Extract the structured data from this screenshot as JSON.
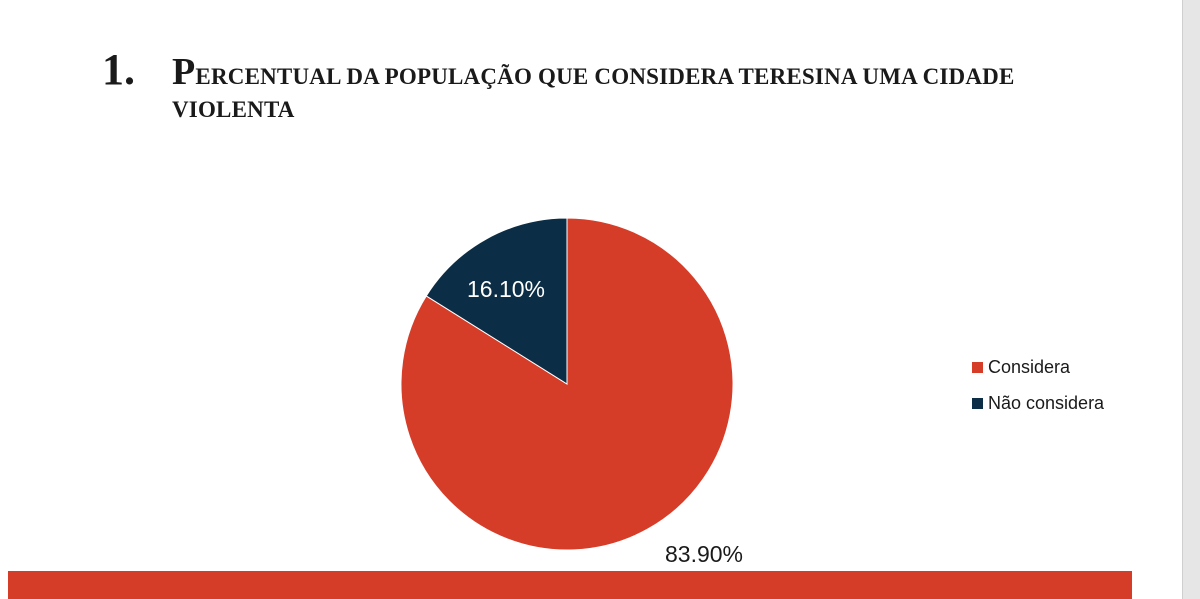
{
  "heading": {
    "number": "1.",
    "title_first_letter": "P",
    "title_rest": "ERCENTUAL DA POPULAÇÃO QUE CONSIDERA TERESINA UMA CIDADE VIOLENTA"
  },
  "colors": {
    "considera": "#d63d28",
    "nao_considera": "#0b2d45",
    "bottom_bar": "#d63d28"
  },
  "chart_data": {
    "type": "pie",
    "categories": [
      "Considera",
      "Não considera"
    ],
    "values": [
      83.9,
      16.1
    ],
    "data_labels": [
      "83.90%",
      "16.10%"
    ],
    "colors": [
      "#d63d28",
      "#0b2d45"
    ],
    "legend": {
      "position": "right",
      "entries": [
        "Considera",
        "Não considera"
      ]
    }
  }
}
